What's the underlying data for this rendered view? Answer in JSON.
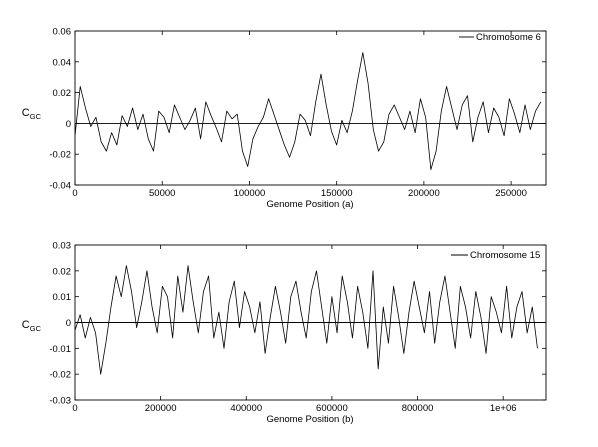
{
  "chart_data": [
    {
      "type": "line",
      "legend_location": "top-right",
      "xlabel": "Genome Position (a)",
      "ylabel_main": "C",
      "ylabel_sub": "GC",
      "xlim": [
        0,
        270000
      ],
      "ylim": [
        -0.04,
        0.06
      ],
      "xticks": [
        0,
        50000,
        100000,
        150000,
        200000,
        250000
      ],
      "xtick_labels": [
        "0",
        "50000",
        "100000",
        "150000",
        "200000",
        "250000"
      ],
      "yticks": [
        -0.04,
        -0.02,
        0,
        0.02,
        0.04,
        0.06
      ],
      "ytick_labels": [
        "-0.04",
        "-0.02",
        "0",
        "0.02",
        "0.04",
        "0.06"
      ],
      "zero_line": true,
      "series": [
        {
          "name": "Chromosome 6",
          "x": [
            0,
            3000,
            6000,
            9000,
            12000,
            15000,
            18000,
            21000,
            24000,
            27000,
            30000,
            33000,
            36000,
            39000,
            42000,
            45000,
            48000,
            51000,
            54000,
            57000,
            60000,
            63000,
            66000,
            69000,
            72000,
            75000,
            78000,
            81000,
            84000,
            87000,
            90000,
            93000,
            96000,
            99000,
            102000,
            105000,
            108000,
            111000,
            114000,
            117000,
            120000,
            123000,
            126000,
            129000,
            132000,
            135000,
            138000,
            141000,
            144000,
            147000,
            150000,
            153000,
            156000,
            159000,
            162000,
            165000,
            168000,
            171000,
            174000,
            177000,
            180000,
            183000,
            186000,
            189000,
            192000,
            195000,
            198000,
            201000,
            204000,
            207000,
            210000,
            213000,
            216000,
            219000,
            222000,
            225000,
            228000,
            231000,
            234000,
            237000,
            240000,
            243000,
            246000,
            249000,
            252000,
            255000,
            258000,
            261000,
            264000,
            267000
          ],
          "y": [
            -0.008,
            0.024,
            0.01,
            -0.002,
            0.004,
            -0.012,
            -0.018,
            -0.006,
            -0.014,
            0.005,
            -0.002,
            0.01,
            -0.004,
            0.006,
            -0.01,
            -0.018,
            0.008,
            0.004,
            -0.006,
            0.012,
            0.004,
            -0.004,
            0.002,
            0.01,
            -0.01,
            0.014,
            0.005,
            -0.003,
            -0.012,
            0.008,
            0.003,
            0.006,
            -0.018,
            -0.028,
            -0.01,
            -0.002,
            0.004,
            0.016,
            0.006,
            -0.004,
            -0.014,
            -0.022,
            -0.012,
            0.006,
            0.002,
            -0.008,
            0.014,
            0.032,
            0.012,
            -0.005,
            -0.014,
            0.002,
            -0.006,
            0.008,
            0.028,
            0.046,
            0.026,
            -0.004,
            -0.018,
            -0.012,
            0.006,
            0.012,
            0.004,
            -0.004,
            0.008,
            -0.006,
            0.016,
            0.004,
            -0.03,
            -0.018,
            0.008,
            0.024,
            0.01,
            -0.004,
            0.012,
            0.018,
            -0.012,
            0.004,
            0.014,
            -0.006,
            0.01,
            0.004,
            -0.008,
            0.016,
            0.006,
            -0.006,
            0.012,
            -0.004,
            0.008,
            0.014
          ]
        }
      ]
    },
    {
      "type": "line",
      "legend_location": "top-right",
      "xlabel": "Genome Position (b)",
      "ylabel_main": "C",
      "ylabel_sub": "GC",
      "xlim": [
        0,
        1100000
      ],
      "ylim": [
        -0.03,
        0.03
      ],
      "xticks": [
        0,
        200000,
        400000,
        600000,
        800000,
        1000000
      ],
      "xtick_labels": [
        "0",
        "200000",
        "400000",
        "600000",
        "800000",
        "1e+06"
      ],
      "yticks": [
        -0.03,
        -0.02,
        -0.01,
        0,
        0.01,
        0.02,
        0.03
      ],
      "ytick_labels": [
        "-0.03",
        "-0.02",
        "-0.01",
        "0",
        "0.01",
        "0.02",
        "0.03"
      ],
      "zero_line": true,
      "series": [
        {
          "name": "Chromosome 15",
          "x": [
            0,
            12000,
            24000,
            36000,
            48000,
            60000,
            72000,
            84000,
            96000,
            108000,
            120000,
            132000,
            144000,
            156000,
            168000,
            180000,
            192000,
            204000,
            216000,
            228000,
            240000,
            252000,
            264000,
            276000,
            288000,
            300000,
            312000,
            324000,
            336000,
            348000,
            360000,
            372000,
            384000,
            396000,
            408000,
            420000,
            432000,
            444000,
            456000,
            468000,
            480000,
            492000,
            504000,
            516000,
            528000,
            540000,
            552000,
            564000,
            576000,
            588000,
            600000,
            612000,
            624000,
            636000,
            648000,
            660000,
            672000,
            684000,
            696000,
            708000,
            720000,
            732000,
            744000,
            756000,
            768000,
            780000,
            792000,
            804000,
            816000,
            828000,
            840000,
            852000,
            864000,
            876000,
            888000,
            900000,
            912000,
            924000,
            936000,
            948000,
            960000,
            972000,
            984000,
            996000,
            1008000,
            1020000,
            1032000,
            1044000,
            1056000,
            1068000,
            1080000
          ],
          "y": [
            -0.003,
            0.003,
            -0.006,
            0.002,
            -0.004,
            -0.02,
            -0.008,
            0.006,
            0.018,
            0.01,
            0.022,
            0.012,
            -0.002,
            0.008,
            0.02,
            0.006,
            -0.004,
            0.014,
            0.01,
            -0.006,
            0.018,
            0.004,
            0.022,
            0.008,
            -0.004,
            0.012,
            0.018,
            -0.006,
            0.004,
            -0.01,
            0.008,
            0.016,
            -0.002,
            0.012,
            0.006,
            -0.004,
            0.008,
            -0.012,
            0.002,
            0.014,
            0.004,
            -0.008,
            0.01,
            0.016,
            0.004,
            -0.006,
            0.012,
            0.02,
            0.006,
            -0.008,
            0.01,
            -0.004,
            0.018,
            0.008,
            -0.006,
            0.014,
            0.004,
            -0.01,
            0.02,
            -0.018,
            0.006,
            -0.008,
            0.014,
            0.002,
            -0.012,
            0.004,
            0.016,
            0.006,
            -0.004,
            0.012,
            -0.008,
            0.008,
            0.018,
            0.004,
            -0.01,
            0.014,
            0.006,
            -0.006,
            0.012,
            0.002,
            -0.012,
            0.01,
            0.004,
            -0.004,
            0.014,
            -0.006,
            0.006,
            0.012,
            -0.004,
            0.006,
            -0.01
          ]
        }
      ]
    }
  ]
}
